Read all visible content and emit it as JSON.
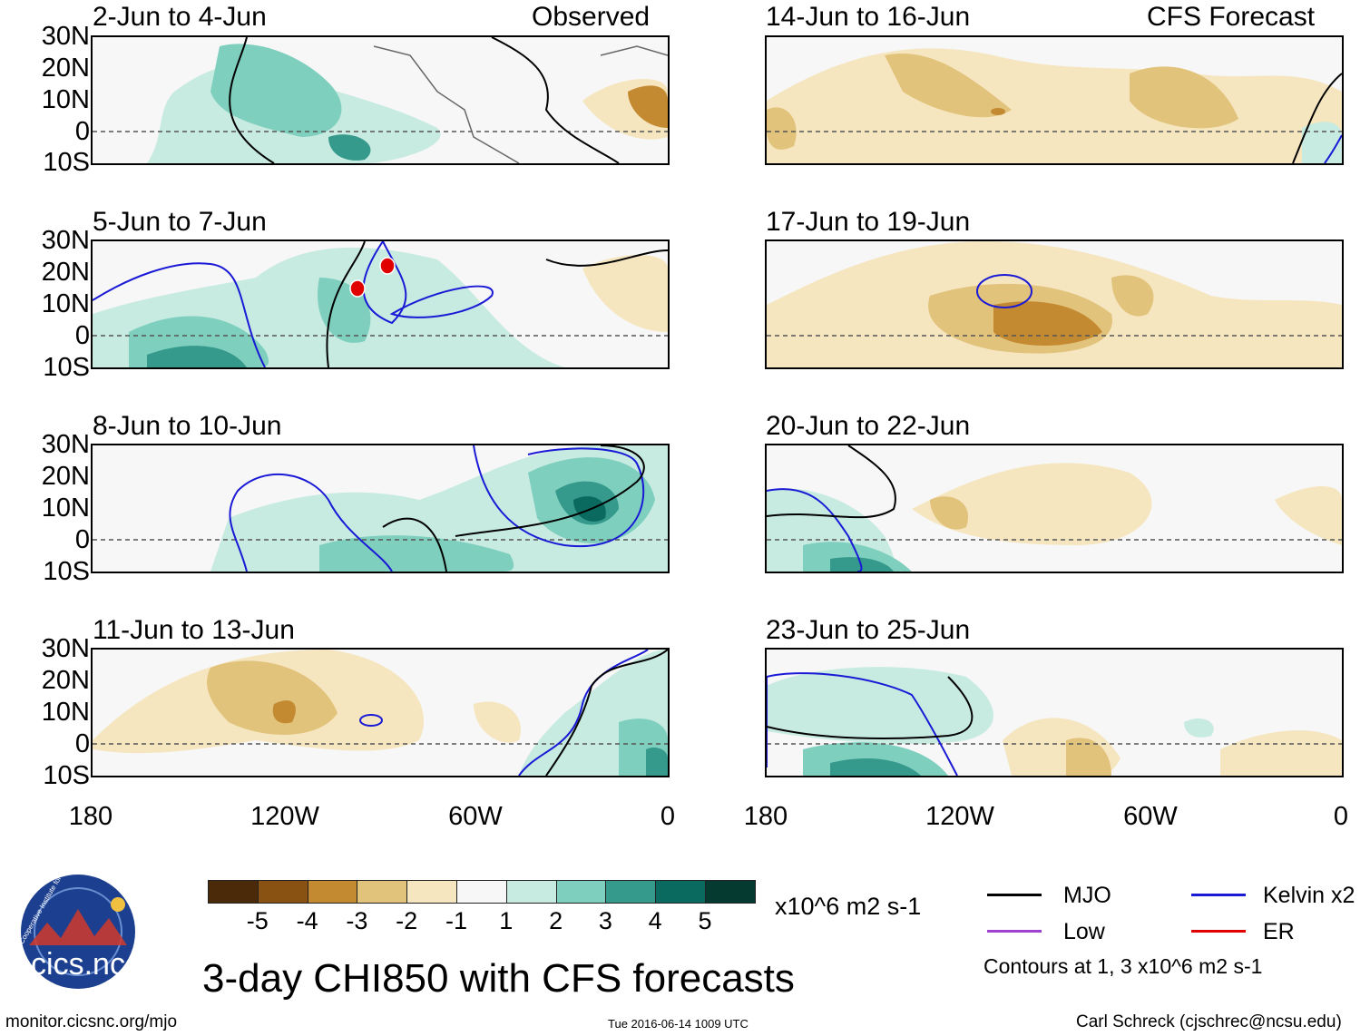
{
  "left_header": "Observed",
  "right_header": "CFS Forecast",
  "left_panels": [
    {
      "title": "2-Jun to 4-Jun"
    },
    {
      "title": "5-Jun to 7-Jun"
    },
    {
      "title": "8-Jun to 10-Jun"
    },
    {
      "title": "11-Jun to 13-Jun"
    }
  ],
  "right_panels": [
    {
      "title": "14-Jun to 16-Jun"
    },
    {
      "title": "17-Jun to 19-Jun"
    },
    {
      "title": "20-Jun to 22-Jun"
    },
    {
      "title": "23-Jun to 25-Jun"
    }
  ],
  "lat_labels": [
    "30N",
    "20N",
    "10N",
    "0",
    "10S"
  ],
  "lon_labels": [
    "180",
    "120W",
    "60W",
    "0"
  ],
  "colorbar": {
    "colors": [
      "#4a2a08",
      "#8a5212",
      "#c48a32",
      "#e2c37c",
      "#f6e6c0",
      "#f7f7f7",
      "#c8ebe1",
      "#7fcfbf",
      "#35998c",
      "#0a6a5f",
      "#053a30"
    ],
    "labels": [
      "-5",
      "-4",
      "-3",
      "-2",
      "-1",
      "1",
      "2",
      "3",
      "4",
      "5"
    ],
    "units": "x10^6 m2 s-1"
  },
  "legend": {
    "mjo": "MJO",
    "kelvin": "Kelvin x2",
    "low": "Low",
    "er": "ER",
    "contours_note": "Contours at 1, 3 x10^6 m2 s-1",
    "colors": {
      "mjo": "#000000",
      "kelvin": "#1a1ad6",
      "low": "#a040d0",
      "er": "#e00000"
    }
  },
  "main_title": "3-day CHI850 with CFS forecasts",
  "logo_text": "cics.nc",
  "logo_ring_text": "Cooperative Institute for Climate and Satellites",
  "footer": {
    "url": "monitor.cicsnc.org/mjo",
    "timestamp": "Tue 2016-06-14 1009 UTC",
    "author": "Carl Schreck (cjschrec@ncsu.edu)"
  }
}
